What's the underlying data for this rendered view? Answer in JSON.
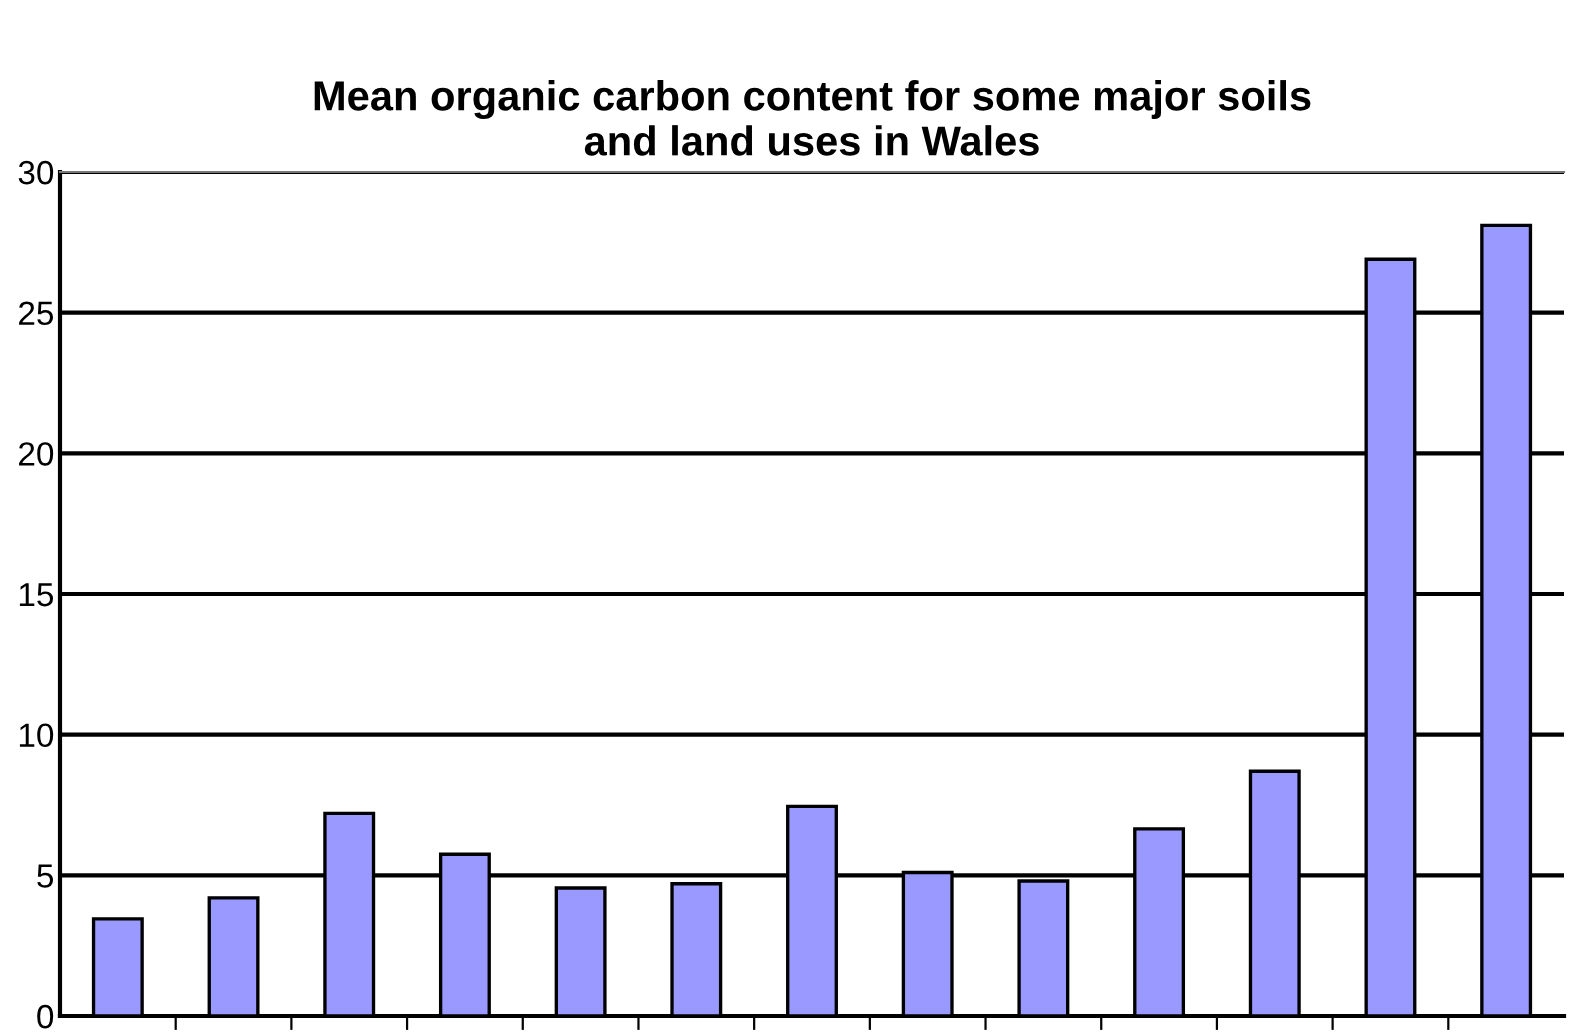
{
  "chart_data": {
    "type": "bar",
    "title": "Mean organic carbon content for some major soils\nand land uses in Wales",
    "categories": [
      null,
      null,
      null,
      null,
      null,
      null,
      null,
      null,
      null,
      null,
      null,
      null,
      null
    ],
    "values": [
      3.45,
      4.2,
      7.2,
      5.75,
      4.55,
      4.7,
      7.45,
      5.1,
      4.8,
      6.65,
      8.7,
      26.9,
      28.1
    ],
    "color": "#9999ff",
    "ylim": [
      0,
      30
    ],
    "yticks": [
      0,
      5,
      10,
      15,
      20,
      25,
      30
    ],
    "grid": "y"
  }
}
